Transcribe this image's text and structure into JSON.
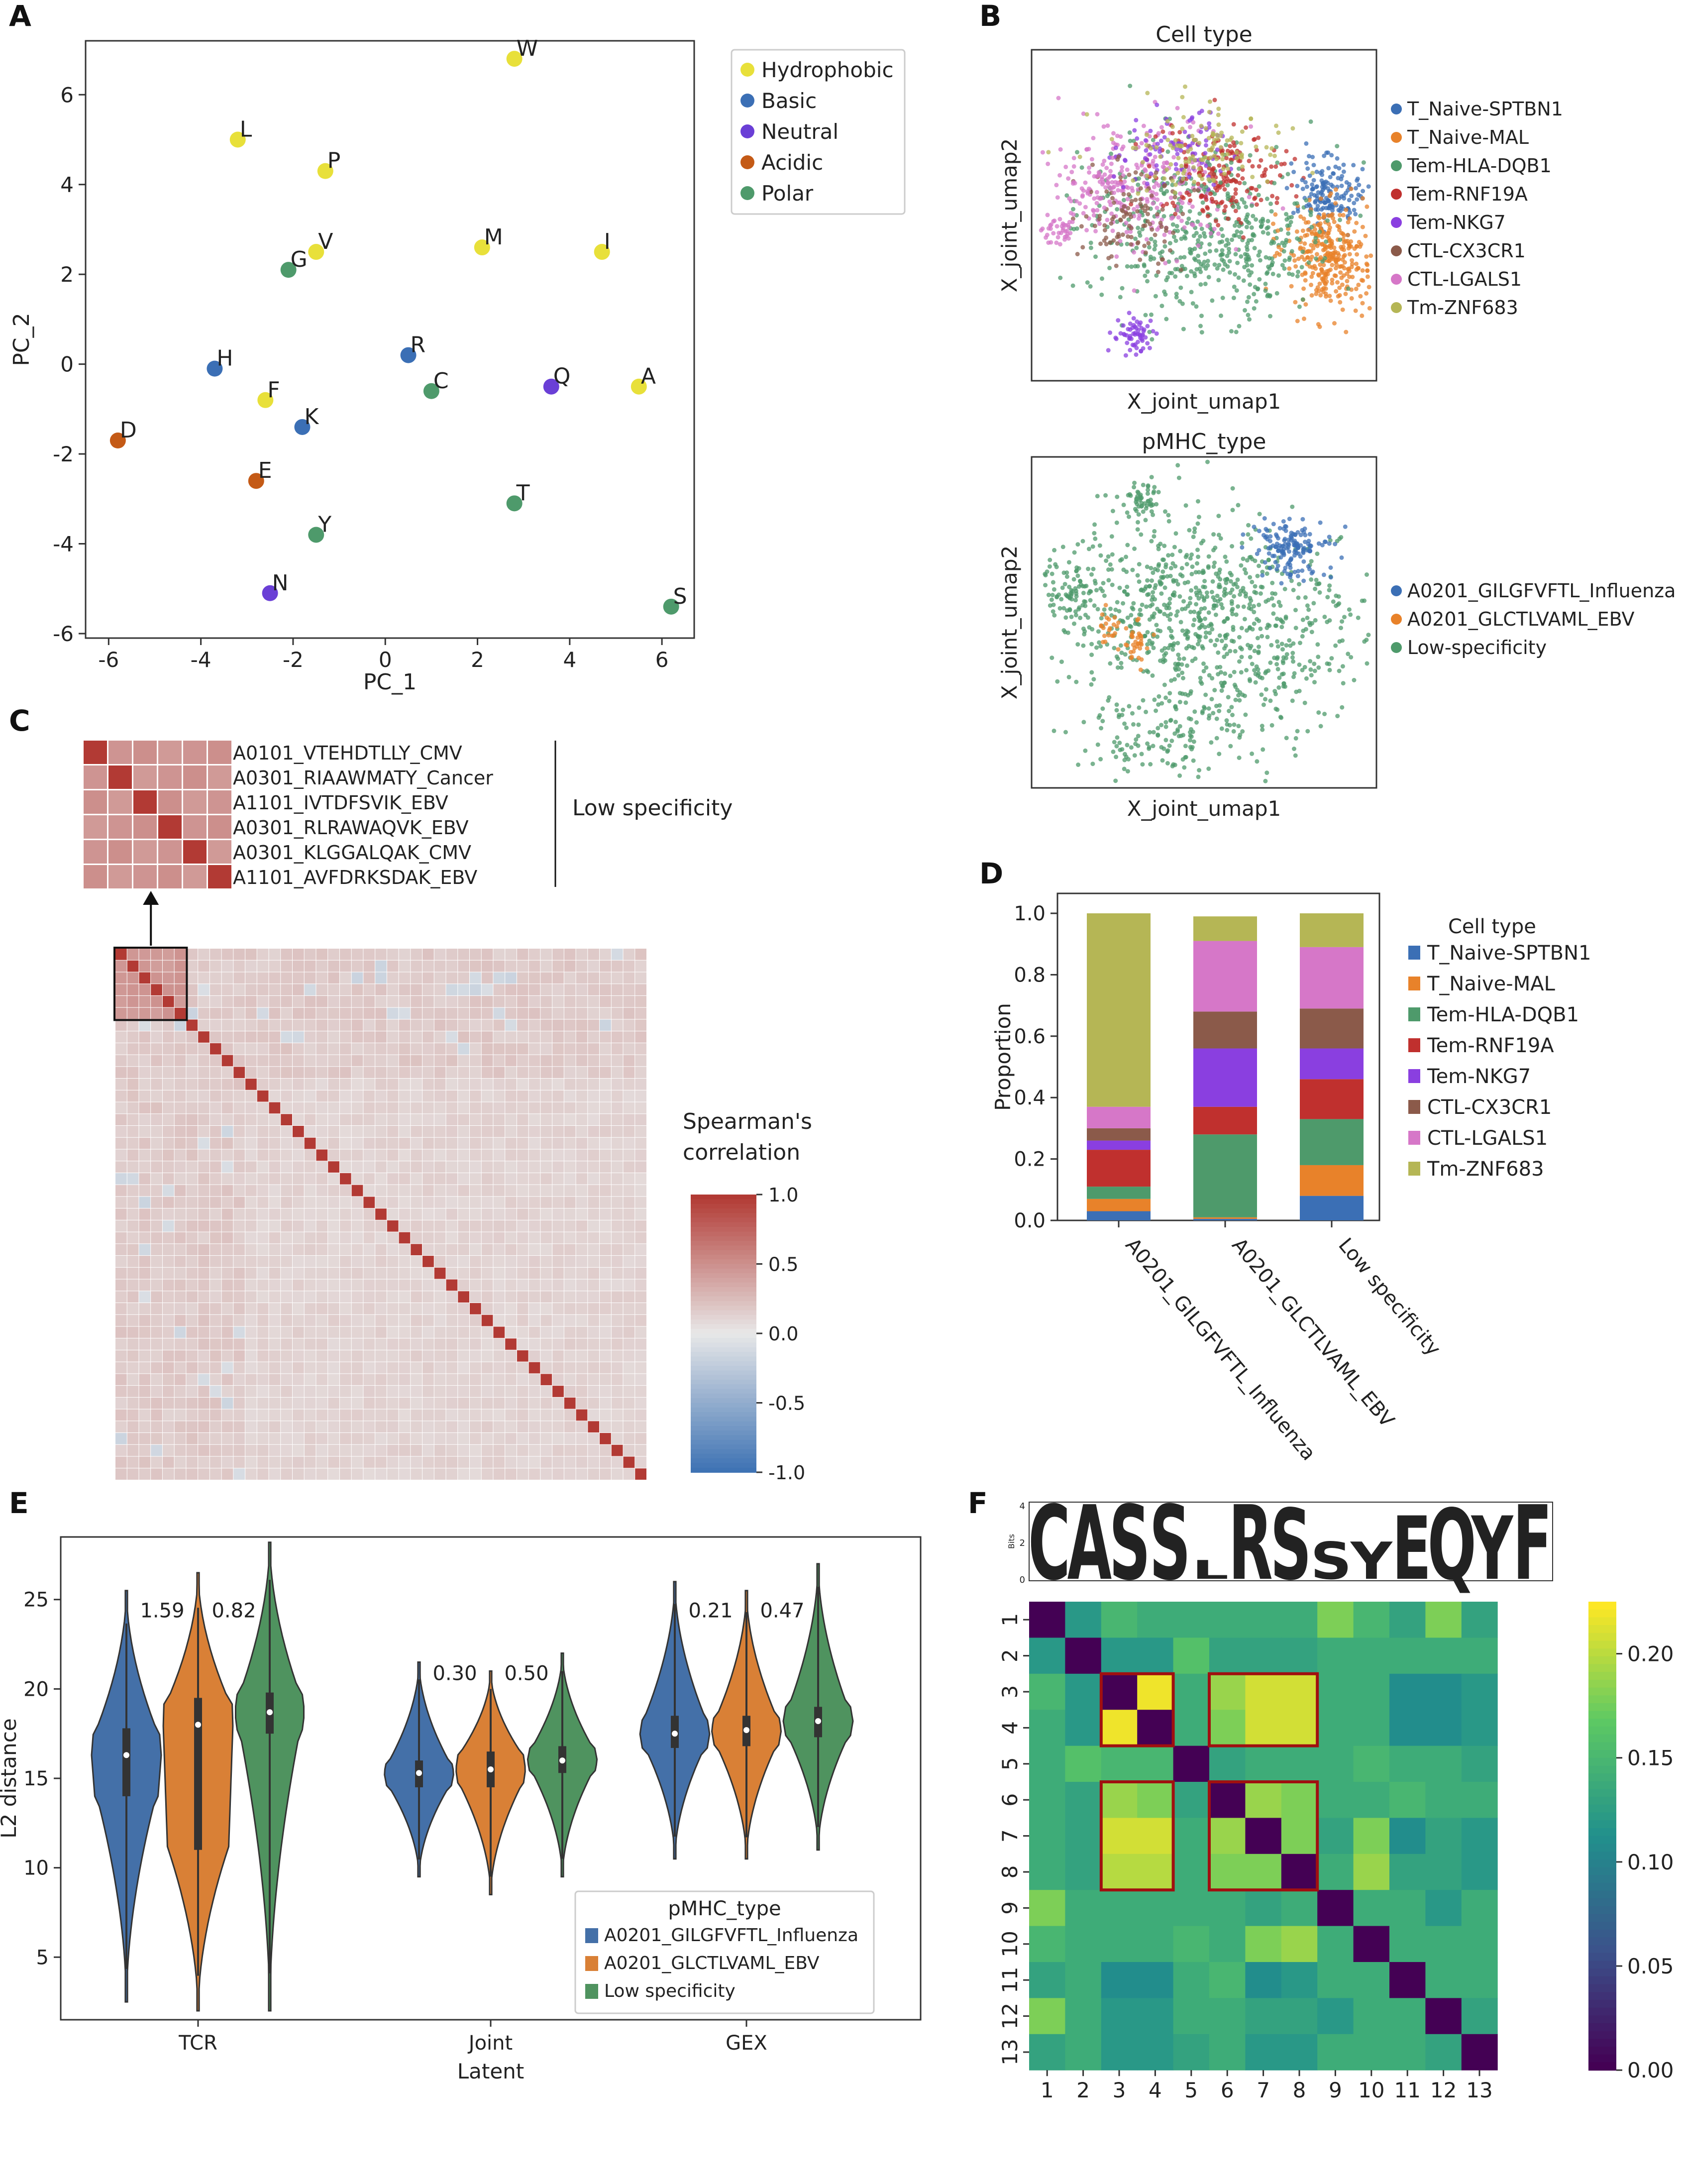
{
  "chart_data": [
    {
      "panel": "A",
      "type": "scatter",
      "xlabel": "PC_1",
      "ylabel": "PC_2",
      "xlim": [
        -6.5,
        6.7
      ],
      "ylim": [
        -6.1,
        7.2
      ],
      "xticks": [
        -6,
        -4,
        -2,
        0,
        2,
        4,
        6
      ],
      "yticks": [
        -6,
        -4,
        -2,
        0,
        2,
        4,
        6
      ],
      "legend": {
        "position": "right",
        "entries": [
          {
            "name": "Hydrophobic",
            "color": "#e8e03a"
          },
          {
            "name": "Basic",
            "color": "#3b6fb5"
          },
          {
            "name": "Neutral",
            "color": "#6a3fd6"
          },
          {
            "name": "Acidic",
            "color": "#c45a16"
          },
          {
            "name": "Polar",
            "color": "#4e9a6b"
          }
        ]
      },
      "points": [
        {
          "label": "W",
          "x": 2.8,
          "y": 6.8,
          "group": "Hydrophobic"
        },
        {
          "label": "L",
          "x": -3.2,
          "y": 5.0,
          "group": "Hydrophobic"
        },
        {
          "label": "P",
          "x": -1.3,
          "y": 4.3,
          "group": "Hydrophobic"
        },
        {
          "label": "G",
          "x": -2.1,
          "y": 2.1,
          "group": "Polar"
        },
        {
          "label": "V",
          "x": -1.5,
          "y": 2.5,
          "group": "Hydrophobic"
        },
        {
          "label": "M",
          "x": 2.1,
          "y": 2.6,
          "group": "Hydrophobic"
        },
        {
          "label": "I",
          "x": 4.7,
          "y": 2.5,
          "group": "Hydrophobic"
        },
        {
          "label": "H",
          "x": -3.7,
          "y": -0.1,
          "group": "Basic"
        },
        {
          "label": "R",
          "x": 0.5,
          "y": 0.2,
          "group": "Basic"
        },
        {
          "label": "C",
          "x": 1.0,
          "y": -0.6,
          "group": "Polar"
        },
        {
          "label": "Q",
          "x": 3.6,
          "y": -0.5,
          "group": "Neutral"
        },
        {
          "label": "A",
          "x": 5.5,
          "y": -0.5,
          "group": "Hydrophobic"
        },
        {
          "label": "F",
          "x": -2.6,
          "y": -0.8,
          "group": "Hydrophobic"
        },
        {
          "label": "K",
          "x": -1.8,
          "y": -1.4,
          "group": "Basic"
        },
        {
          "label": "D",
          "x": -5.8,
          "y": -1.7,
          "group": "Acidic"
        },
        {
          "label": "E",
          "x": -2.8,
          "y": -2.6,
          "group": "Acidic"
        },
        {
          "label": "T",
          "x": 2.8,
          "y": -3.1,
          "group": "Polar"
        },
        {
          "label": "Y",
          "x": -1.5,
          "y": -3.8,
          "group": "Polar"
        },
        {
          "label": "N",
          "x": -2.5,
          "y": -5.1,
          "group": "Neutral"
        },
        {
          "label": "S",
          "x": 6.2,
          "y": -5.4,
          "group": "Polar"
        }
      ]
    },
    {
      "panel": "B1",
      "type": "scatter",
      "title": "Cell type",
      "xlabel": "X_joint_umap1",
      "ylabel": "X_joint_umap2",
      "legend": {
        "position": "right",
        "entries": [
          {
            "name": "T_Naive-SPTBN1",
            "color": "#3b6fb5"
          },
          {
            "name": "T_Naive-MAL",
            "color": "#e8822a"
          },
          {
            "name": "Tem-HLA-DQB1",
            "color": "#4e9a6b"
          },
          {
            "name": "Tem-RNF19A",
            "color": "#c0302e"
          },
          {
            "name": "Tem-NKG7",
            "color": "#8a3fe0"
          },
          {
            "name": "CTL-CX3CR1",
            "color": "#8b5a4a"
          },
          {
            "name": "CTL-LGALS1",
            "color": "#d677c8"
          },
          {
            "name": "Tm-ZNF683",
            "color": "#b5b655"
          }
        ]
      }
    },
    {
      "panel": "B2",
      "type": "scatter",
      "title": "pMHC_type",
      "xlabel": "X_joint_umap1",
      "ylabel": "X_joint_umap2",
      "legend": {
        "position": "right",
        "entries": [
          {
            "name": "A0201_GILGFVFTL_Influenza",
            "color": "#3b6fb5"
          },
          {
            "name": "A0201_GLCTLVAML_EBV",
            "color": "#e8822a"
          },
          {
            "name": "Low-specificity",
            "color": "#4e9a6b"
          }
        ]
      }
    },
    {
      "panel": "C",
      "type": "heatmap",
      "size": 45,
      "colorbar": {
        "label_line1": "Spearman's",
        "label_line2": "correlation",
        "ticks": [
          "1.0",
          "0.5",
          "0.0",
          "-0.5",
          "-1.0"
        ],
        "range": [
          -1.0,
          1.0
        ]
      },
      "inset_labels": [
        "A0101_VTEHDTLLY_CMV",
        "A0301_RIAAWMATY_Cancer",
        "A1101_IVTDFSVIK_EBV",
        "A0301_RLRAWAQVK_EBV",
        "A0301_KLGGALQAK_CMV",
        "A1101_AVFDRKSDAK_EBV"
      ],
      "inset_group": "Low specificity"
    },
    {
      "panel": "D",
      "type": "bar",
      "stacked": true,
      "ylabel": "Proportion",
      "ylim": [
        0,
        1.0
      ],
      "yticks": [
        "0.0",
        "0.2",
        "0.4",
        "0.6",
        "0.8",
        "1.0"
      ],
      "categories": [
        "A0201_GILGFVFTL_Influenza",
        "A0201_GLCTLVAML_EBV",
        "Low specificity"
      ],
      "legend": {
        "title": "Cell type",
        "position": "right"
      },
      "series": [
        {
          "name": "T_Naive-SPTBN1",
          "color": "#3b6fb5",
          "values": [
            0.03,
            0.005,
            0.08
          ]
        },
        {
          "name": "T_Naive-MAL",
          "color": "#e8822a",
          "values": [
            0.04,
            0.005,
            0.1
          ]
        },
        {
          "name": "Tem-HLA-DQB1",
          "color": "#4e9a6b",
          "values": [
            0.04,
            0.27,
            0.15
          ]
        },
        {
          "name": "Tem-RNF19A",
          "color": "#c0302e",
          "values": [
            0.12,
            0.09,
            0.13
          ]
        },
        {
          "name": "Tem-NKG7",
          "color": "#8a3fe0",
          "values": [
            0.03,
            0.19,
            0.1
          ]
        },
        {
          "name": "CTL-CX3CR1",
          "color": "#8b5a4a",
          "values": [
            0.04,
            0.12,
            0.13
          ]
        },
        {
          "name": "CTL-LGALS1",
          "color": "#d677c8",
          "values": [
            0.07,
            0.23,
            0.2
          ]
        },
        {
          "name": "Tm-ZNF683",
          "color": "#b5b655",
          "values": [
            0.63,
            0.08,
            0.11
          ]
        }
      ]
    },
    {
      "panel": "E",
      "type": "violin",
      "xlabel": "Latent",
      "ylabel": "L2 distance",
      "ylim": [
        1.5,
        28.5
      ],
      "yticks": [
        5,
        10,
        15,
        20,
        25
      ],
      "categories": [
        "TCR",
        "Joint",
        "GEX"
      ],
      "legend": {
        "title": "pMHC_type",
        "position": "lower-right"
      },
      "series": [
        {
          "name": "A0201_GILGFVFTL_Influenza",
          "color": "#4470a8"
        },
        {
          "name": "A0201_GLCTLVAML_EBV",
          "color": "#d98036"
        },
        {
          "name": "Low specificity",
          "color": "#4f935f"
        }
      ],
      "violins": [
        {
          "cat": 0,
          "series": 0,
          "min": 2.5,
          "max": 25.5,
          "q1": 14.0,
          "median": 16.3,
          "q3": 17.8
        },
        {
          "cat": 0,
          "series": 1,
          "min": 2.0,
          "max": 26.5,
          "q1": 11.0,
          "median": 18.0,
          "q3": 19.5
        },
        {
          "cat": 0,
          "series": 2,
          "min": 2.0,
          "max": 28.2,
          "q1": 17.5,
          "median": 18.7,
          "q3": 19.8
        },
        {
          "cat": 1,
          "series": 0,
          "min": 9.5,
          "max": 21.5,
          "q1": 14.5,
          "median": 15.3,
          "q3": 16.0
        },
        {
          "cat": 1,
          "series": 1,
          "min": 8.5,
          "max": 21.0,
          "q1": 14.5,
          "median": 15.5,
          "q3": 16.5
        },
        {
          "cat": 1,
          "series": 2,
          "min": 9.5,
          "max": 22.0,
          "q1": 15.3,
          "median": 16.0,
          "q3": 16.8
        },
        {
          "cat": 2,
          "series": 0,
          "min": 10.5,
          "max": 26.0,
          "q1": 16.7,
          "median": 17.5,
          "q3": 18.5
        },
        {
          "cat": 2,
          "series": 1,
          "min": 10.5,
          "max": 25.5,
          "q1": 16.8,
          "median": 17.7,
          "q3": 18.5
        },
        {
          "cat": 2,
          "series": 2,
          "min": 11.0,
          "max": 27.0,
          "q1": 17.3,
          "median": 18.2,
          "q3": 19.0
        }
      ],
      "annotations": [
        {
          "text": "1.59",
          "cat": 0,
          "pos": 0.5,
          "y": 24.0
        },
        {
          "text": "0.82",
          "cat": 0,
          "pos": 1.5,
          "y": 24.0
        },
        {
          "text": "0.30",
          "cat": 1,
          "pos": 0.5,
          "y": 20.5
        },
        {
          "text": "0.50",
          "cat": 1,
          "pos": 1.5,
          "y": 20.5
        },
        {
          "text": "0.21",
          "cat": 2,
          "pos": 0.5,
          "y": 24.0
        },
        {
          "text": "0.47",
          "cat": 2,
          "pos": 1.5,
          "y": 24.0
        }
      ]
    },
    {
      "panel": "F",
      "type": "heatmap",
      "labels": [
        "1",
        "2",
        "3",
        "4",
        "5",
        "6",
        "7",
        "8",
        "9",
        "10",
        "11",
        "12",
        "13"
      ],
      "colorbar": {
        "ticks": [
          "0.00",
          "0.05",
          "0.10",
          "0.15",
          "0.20"
        ],
        "range": [
          0.0,
          0.225
        ]
      },
      "logo": {
        "sequence": "CASSLRSSYEQYF",
        "ylabel": "Bits",
        "yticks": [
          "4",
          "2",
          "0"
        ]
      },
      "values": [
        [
          0.0,
          0.12,
          0.15,
          0.14,
          0.14,
          0.14,
          0.14,
          0.14,
          0.18,
          0.15,
          0.13,
          0.18,
          0.13
        ],
        [
          0.12,
          0.0,
          0.12,
          0.12,
          0.16,
          0.13,
          0.13,
          0.13,
          0.14,
          0.14,
          0.14,
          0.14,
          0.14
        ],
        [
          0.15,
          0.12,
          0.0,
          0.22,
          0.14,
          0.19,
          0.21,
          0.21,
          0.14,
          0.14,
          0.11,
          0.11,
          0.12
        ],
        [
          0.14,
          0.12,
          0.22,
          0.0,
          0.14,
          0.18,
          0.21,
          0.21,
          0.14,
          0.14,
          0.11,
          0.11,
          0.12
        ],
        [
          0.14,
          0.16,
          0.15,
          0.15,
          0.0,
          0.13,
          0.14,
          0.14,
          0.14,
          0.15,
          0.14,
          0.14,
          0.13
        ],
        [
          0.14,
          0.13,
          0.19,
          0.18,
          0.13,
          0.0,
          0.19,
          0.18,
          0.14,
          0.14,
          0.15,
          0.14,
          0.14
        ],
        [
          0.14,
          0.13,
          0.21,
          0.21,
          0.14,
          0.19,
          0.0,
          0.18,
          0.13,
          0.18,
          0.11,
          0.13,
          0.12
        ],
        [
          0.14,
          0.13,
          0.2,
          0.2,
          0.14,
          0.18,
          0.18,
          0.0,
          0.14,
          0.19,
          0.13,
          0.13,
          0.12
        ],
        [
          0.18,
          0.14,
          0.14,
          0.14,
          0.14,
          0.14,
          0.13,
          0.14,
          0.0,
          0.14,
          0.14,
          0.12,
          0.14
        ],
        [
          0.15,
          0.14,
          0.14,
          0.14,
          0.15,
          0.14,
          0.18,
          0.19,
          0.14,
          0.0,
          0.14,
          0.14,
          0.14
        ],
        [
          0.13,
          0.14,
          0.11,
          0.11,
          0.14,
          0.15,
          0.11,
          0.12,
          0.14,
          0.14,
          0.0,
          0.14,
          0.14
        ],
        [
          0.18,
          0.14,
          0.12,
          0.12,
          0.14,
          0.14,
          0.13,
          0.13,
          0.12,
          0.14,
          0.14,
          0.0,
          0.13
        ],
        [
          0.13,
          0.14,
          0.12,
          0.12,
          0.13,
          0.14,
          0.12,
          0.12,
          0.14,
          0.14,
          0.14,
          0.13,
          0.0
        ]
      ],
      "highlight_boxes": [
        {
          "rows": [
            3,
            4
          ],
          "cols": [
            3,
            4
          ]
        },
        {
          "rows": [
            3,
            4
          ],
          "cols": [
            6,
            8
          ]
        },
        {
          "rows": [
            6,
            8
          ],
          "cols": [
            3,
            4
          ]
        },
        {
          "rows": [
            6,
            8
          ],
          "cols": [
            6,
            8
          ]
        }
      ]
    }
  ],
  "panels": {
    "A": "A",
    "B": "B",
    "C": "C",
    "D": "D",
    "E": "E",
    "F": "F"
  }
}
